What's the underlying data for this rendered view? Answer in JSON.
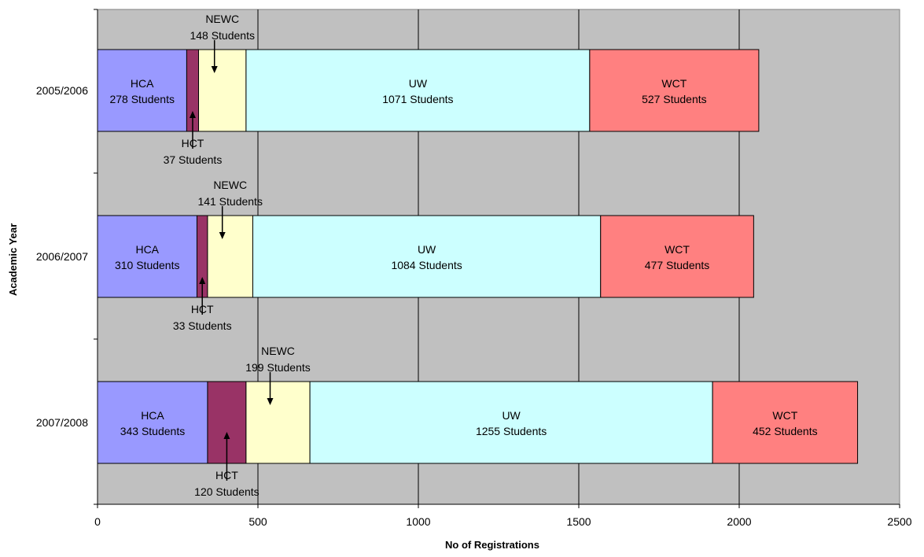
{
  "chart_data": {
    "type": "bar",
    "orientation": "horizontal",
    "stacked": true,
    "categories": [
      "2005/2006",
      "2006/2007",
      "2007/2008"
    ],
    "series": [
      {
        "name": "HCA",
        "color": "#9999ff",
        "values": [
          278,
          310,
          343
        ],
        "labels": [
          "278 Students",
          "310 Students",
          "343 Students"
        ]
      },
      {
        "name": "HCT",
        "color": "#993366",
        "values": [
          37,
          33,
          120
        ],
        "labels": [
          "37 Students",
          "33 Students",
          "120 Students"
        ]
      },
      {
        "name": "NEWC",
        "color": "#ffffcc",
        "values": [
          148,
          141,
          199
        ],
        "labels": [
          "148 Students",
          "141 Students",
          "199 Students"
        ]
      },
      {
        "name": "UW",
        "color": "#ccffff",
        "values": [
          1071,
          1084,
          1255
        ],
        "labels": [
          "1071 Students",
          "1084 Students",
          "1255 Students"
        ]
      },
      {
        "name": "WCT",
        "color": "#ff8080",
        "values": [
          527,
          477,
          452
        ],
        "labels": [
          "527 Students",
          "477 Students",
          "452 Students"
        ]
      }
    ],
    "xlabel": "No of Registrations",
    "ylabel": "Academic Year",
    "xlim": [
      0,
      2500
    ],
    "xticks": [
      0,
      500,
      1000,
      1500,
      2000,
      2500
    ],
    "grid": true,
    "plot_background": "#c0c0c0"
  }
}
